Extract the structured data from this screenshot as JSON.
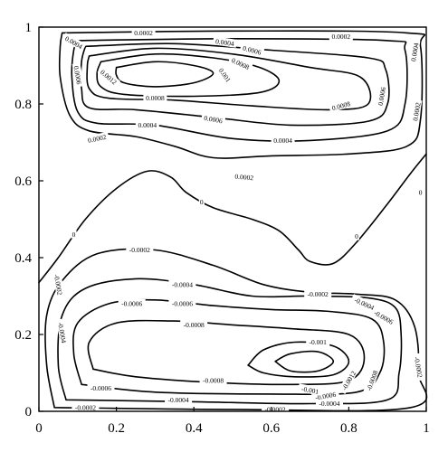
{
  "chart_data": {
    "type": "contour",
    "title": "",
    "xlabel": "",
    "ylabel": "",
    "xlim": [
      0,
      1
    ],
    "ylim": [
      0,
      1
    ],
    "xticks": [
      0,
      0.2,
      0.4,
      0.6,
      0.8,
      1
    ],
    "yticks": [
      0,
      0.2,
      0.4,
      0.6,
      0.8,
      1
    ],
    "x_tick_labels": [
      "0",
      "0.2",
      "0.4",
      "0.6",
      "0.8",
      "1"
    ],
    "y_tick_labels": [
      "0",
      "0.2",
      "0.4",
      "0.6",
      "0.8",
      "1"
    ],
    "grid": false,
    "line_color": "#000000",
    "levels": [
      -0.0012,
      -0.001,
      -0.0008,
      -0.0006,
      -0.0004,
      -0.0002,
      0,
      0.0002,
      0.0004,
      0.0006,
      0.0008,
      0.001,
      0.0012
    ],
    "contours": [
      {
        "level": 0.0002,
        "points": [
          [
            0.06,
            0.985
          ],
          [
            0.5,
            0.99
          ],
          [
            0.95,
            0.985
          ],
          [
            0.985,
            0.95
          ],
          [
            0.985,
            0.76
          ],
          [
            0.95,
            0.69
          ],
          [
            0.8,
            0.67
          ],
          [
            0.6,
            0.665
          ],
          [
            0.45,
            0.66
          ],
          [
            0.35,
            0.69
          ],
          [
            0.25,
            0.715
          ],
          [
            0.13,
            0.73
          ],
          [
            0.08,
            0.77
          ],
          [
            0.055,
            0.87
          ],
          [
            0.055,
            0.95
          ],
          [
            0.06,
            0.985
          ]
        ]
      },
      {
        "level": 0.0004,
        "points": [
          [
            0.1,
            0.965
          ],
          [
            0.5,
            0.97
          ],
          [
            0.9,
            0.965
          ],
          [
            0.945,
            0.94
          ],
          [
            0.945,
            0.8
          ],
          [
            0.9,
            0.73
          ],
          [
            0.7,
            0.705
          ],
          [
            0.5,
            0.71
          ],
          [
            0.3,
            0.745
          ],
          [
            0.15,
            0.75
          ],
          [
            0.1,
            0.78
          ],
          [
            0.085,
            0.87
          ],
          [
            0.09,
            0.94
          ],
          [
            0.1,
            0.965
          ]
        ]
      },
      {
        "level": 0.0006,
        "points": [
          [
            0.12,
            0.95
          ],
          [
            0.35,
            0.957
          ],
          [
            0.6,
            0.94
          ],
          [
            0.85,
            0.92
          ],
          [
            0.895,
            0.89
          ],
          [
            0.9,
            0.8
          ],
          [
            0.85,
            0.755
          ],
          [
            0.65,
            0.745
          ],
          [
            0.45,
            0.765
          ],
          [
            0.25,
            0.785
          ],
          [
            0.13,
            0.79
          ],
          [
            0.11,
            0.84
          ],
          [
            0.11,
            0.91
          ],
          [
            0.12,
            0.95
          ]
        ]
      },
      {
        "level": 0.0008,
        "points": [
          [
            0.13,
            0.925
          ],
          [
            0.3,
            0.945
          ],
          [
            0.5,
            0.93
          ],
          [
            0.7,
            0.895
          ],
          [
            0.83,
            0.87
          ],
          [
            0.85,
            0.8
          ],
          [
            0.75,
            0.785
          ],
          [
            0.55,
            0.795
          ],
          [
            0.35,
            0.81
          ],
          [
            0.18,
            0.815
          ],
          [
            0.13,
            0.84
          ],
          [
            0.125,
            0.9
          ],
          [
            0.13,
            0.925
          ]
        ]
      },
      {
        "level": 0.001,
        "points": [
          [
            0.16,
            0.91
          ],
          [
            0.3,
            0.93
          ],
          [
            0.45,
            0.92
          ],
          [
            0.57,
            0.895
          ],
          [
            0.62,
            0.86
          ],
          [
            0.57,
            0.83
          ],
          [
            0.4,
            0.82
          ],
          [
            0.22,
            0.825
          ],
          [
            0.16,
            0.845
          ],
          [
            0.15,
            0.88
          ],
          [
            0.16,
            0.91
          ]
        ]
      },
      {
        "level": 0.0012,
        "points": [
          [
            0.2,
            0.895
          ],
          [
            0.3,
            0.91
          ],
          [
            0.4,
            0.9
          ],
          [
            0.45,
            0.88
          ],
          [
            0.4,
            0.855
          ],
          [
            0.3,
            0.845
          ],
          [
            0.22,
            0.855
          ],
          [
            0.2,
            0.875
          ],
          [
            0.2,
            0.895
          ]
        ]
      },
      {
        "level": 0,
        "points": [
          [
            0,
            0.335
          ],
          [
            0.05,
            0.4
          ],
          [
            0.12,
            0.5
          ],
          [
            0.2,
            0.58
          ],
          [
            0.28,
            0.625
          ],
          [
            0.34,
            0.61
          ],
          [
            0.38,
            0.57
          ],
          [
            0.45,
            0.53
          ],
          [
            0.55,
            0.5
          ],
          [
            0.62,
            0.47
          ],
          [
            0.67,
            0.42
          ],
          [
            0.7,
            0.39
          ],
          [
            0.76,
            0.385
          ],
          [
            0.82,
            0.44
          ],
          [
            0.9,
            0.54
          ],
          [
            0.96,
            0.62
          ],
          [
            1,
            0.67
          ]
        ]
      },
      {
        "level": -0.0002,
        "points": [
          [
            0.04,
            0.01
          ],
          [
            0.02,
            0.12
          ],
          [
            0.02,
            0.25
          ],
          [
            0.06,
            0.34
          ],
          [
            0.15,
            0.41
          ],
          [
            0.3,
            0.42
          ],
          [
            0.45,
            0.38
          ],
          [
            0.58,
            0.33
          ],
          [
            0.7,
            0.31
          ],
          [
            0.82,
            0.305
          ],
          [
            0.92,
            0.29
          ],
          [
            0.97,
            0.22
          ],
          [
            0.98,
            0.1
          ],
          [
            0.96,
            0.01
          ],
          [
            0.5,
            0.005
          ],
          [
            0.04,
            0.01
          ]
        ]
      },
      {
        "level": -0.0004,
        "points": [
          [
            0.07,
            0.03
          ],
          [
            0.05,
            0.12
          ],
          [
            0.06,
            0.25
          ],
          [
            0.12,
            0.32
          ],
          [
            0.25,
            0.345
          ],
          [
            0.4,
            0.33
          ],
          [
            0.55,
            0.3
          ],
          [
            0.7,
            0.3
          ],
          [
            0.85,
            0.295
          ],
          [
            0.92,
            0.27
          ],
          [
            0.935,
            0.2
          ],
          [
            0.93,
            0.1
          ],
          [
            0.9,
            0.03
          ],
          [
            0.7,
            0.02
          ],
          [
            0.4,
            0.025
          ],
          [
            0.07,
            0.03
          ]
        ]
      },
      {
        "level": -0.0006,
        "points": [
          [
            0.11,
            0.07
          ],
          [
            0.09,
            0.15
          ],
          [
            0.1,
            0.23
          ],
          [
            0.18,
            0.28
          ],
          [
            0.3,
            0.29
          ],
          [
            0.45,
            0.275
          ],
          [
            0.6,
            0.265
          ],
          [
            0.75,
            0.26
          ],
          [
            0.86,
            0.24
          ],
          [
            0.89,
            0.18
          ],
          [
            0.88,
            0.1
          ],
          [
            0.82,
            0.05
          ],
          [
            0.6,
            0.045
          ],
          [
            0.3,
            0.05
          ],
          [
            0.11,
            0.07
          ]
        ]
      },
      {
        "level": -0.0008,
        "points": [
          [
            0.14,
            0.11
          ],
          [
            0.13,
            0.18
          ],
          [
            0.2,
            0.23
          ],
          [
            0.35,
            0.235
          ],
          [
            0.5,
            0.225
          ],
          [
            0.65,
            0.215
          ],
          [
            0.8,
            0.2
          ],
          [
            0.84,
            0.14
          ],
          [
            0.8,
            0.08
          ],
          [
            0.65,
            0.07
          ],
          [
            0.45,
            0.075
          ],
          [
            0.25,
            0.09
          ],
          [
            0.14,
            0.11
          ]
        ]
      },
      {
        "level": -0.001,
        "points": [
          [
            0.54,
            0.12
          ],
          [
            0.58,
            0.16
          ],
          [
            0.66,
            0.18
          ],
          [
            0.76,
            0.17
          ],
          [
            0.8,
            0.13
          ],
          [
            0.76,
            0.095
          ],
          [
            0.66,
            0.09
          ],
          [
            0.58,
            0.1
          ],
          [
            0.54,
            0.12
          ]
        ]
      },
      {
        "level": -0.0012,
        "points": [
          [
            0.61,
            0.13
          ],
          [
            0.65,
            0.15
          ],
          [
            0.72,
            0.155
          ],
          [
            0.76,
            0.13
          ],
          [
            0.72,
            0.105
          ],
          [
            0.65,
            0.105
          ],
          [
            0.61,
            0.13
          ]
        ]
      }
    ],
    "contour_labels": [
      {
        "text": "0.0002",
        "x": 0.27,
        "y": 0.985,
        "angle": 0
      },
      {
        "text": "0.0002",
        "x": 0.78,
        "y": 0.975,
        "angle": 0
      },
      {
        "text": "0.0004",
        "x": 0.97,
        "y": 0.935,
        "angle": 80
      },
      {
        "text": "0.0004",
        "x": 0.09,
        "y": 0.96,
        "angle": -30
      },
      {
        "text": "0.0004",
        "x": 0.48,
        "y": 0.96,
        "angle": -8
      },
      {
        "text": "0.0006",
        "x": 0.55,
        "y": 0.94,
        "angle": -15
      },
      {
        "text": "0.0008",
        "x": 0.52,
        "y": 0.905,
        "angle": -25
      },
      {
        "text": "0.001",
        "x": 0.48,
        "y": 0.875,
        "angle": -55
      },
      {
        "text": "0.0012",
        "x": 0.18,
        "y": 0.87,
        "angle": -40
      },
      {
        "text": "0.0006",
        "x": 0.1,
        "y": 0.875,
        "angle": -80
      },
      {
        "text": "0.0006",
        "x": 0.885,
        "y": 0.82,
        "angle": 80
      },
      {
        "text": "0.0002",
        "x": 0.975,
        "y": 0.78,
        "angle": 80
      },
      {
        "text": "0.0008",
        "x": 0.3,
        "y": 0.815,
        "angle": 0
      },
      {
        "text": "0.0008",
        "x": 0.78,
        "y": 0.795,
        "angle": 15
      },
      {
        "text": "0.0006",
        "x": 0.45,
        "y": 0.76,
        "angle": -10
      },
      {
        "text": "0.0004",
        "x": 0.28,
        "y": 0.745,
        "angle": 0
      },
      {
        "text": "0.0004",
        "x": 0.63,
        "y": 0.705,
        "angle": 0
      },
      {
        "text": "0.0002",
        "x": 0.15,
        "y": 0.71,
        "angle": 12
      },
      {
        "text": "0.0002",
        "x": 0.53,
        "y": 0.61,
        "angle": -5
      },
      {
        "text": "0",
        "x": 0.42,
        "y": 0.545,
        "angle": 0
      },
      {
        "text": "0",
        "x": 0.82,
        "y": 0.455,
        "angle": 0
      },
      {
        "text": "0",
        "x": 0.09,
        "y": 0.46,
        "angle": 0
      },
      {
        "text": "0",
        "x": 0.985,
        "y": 0.57,
        "angle": 0
      },
      {
        "text": "-0.0002",
        "x": 0.26,
        "y": 0.42,
        "angle": 0
      },
      {
        "text": "-0.0002",
        "x": 0.05,
        "y": 0.33,
        "angle": -80
      },
      {
        "text": "-0.0002",
        "x": 0.72,
        "y": 0.305,
        "angle": 0
      },
      {
        "text": "-0.0002",
        "x": 0.98,
        "y": 0.115,
        "angle": -80
      },
      {
        "text": "-0.0002",
        "x": 0.12,
        "y": 0.01,
        "angle": 0
      },
      {
        "text": "-0.0002",
        "x": 0.61,
        "y": 0.005,
        "angle": 0
      },
      {
        "text": "-0.0004",
        "x": 0.37,
        "y": 0.33,
        "angle": 0
      },
      {
        "text": "-0.0004",
        "x": 0.06,
        "y": 0.205,
        "angle": -80
      },
      {
        "text": "-0.0004",
        "x": 0.84,
        "y": 0.28,
        "angle": -25
      },
      {
        "text": "-0.0004",
        "x": 0.36,
        "y": 0.03,
        "angle": 0
      },
      {
        "text": "-0.0004",
        "x": 0.75,
        "y": 0.02,
        "angle": 0
      },
      {
        "text": "-0.0006",
        "x": 0.24,
        "y": 0.28,
        "angle": 0
      },
      {
        "text": "-0.0006",
        "x": 0.37,
        "y": 0.28,
        "angle": 0
      },
      {
        "text": "-0.0006",
        "x": 0.89,
        "y": 0.245,
        "angle": -30
      },
      {
        "text": "-0.0006",
        "x": 0.16,
        "y": 0.06,
        "angle": 0
      },
      {
        "text": "-0.0006",
        "x": 0.74,
        "y": 0.04,
        "angle": 10
      },
      {
        "text": "-0.0008",
        "x": 0.4,
        "y": 0.225,
        "angle": 0
      },
      {
        "text": "-0.0008",
        "x": 0.45,
        "y": 0.08,
        "angle": 0
      },
      {
        "text": "-0.0008",
        "x": 0.86,
        "y": 0.08,
        "angle": 70
      },
      {
        "text": "-0.001",
        "x": 0.72,
        "y": 0.18,
        "angle": 0
      },
      {
        "text": "-0.001",
        "x": 0.7,
        "y": 0.055,
        "angle": -10
      },
      {
        "text": "-0.0012",
        "x": 0.8,
        "y": 0.08,
        "angle": 60
      }
    ]
  }
}
